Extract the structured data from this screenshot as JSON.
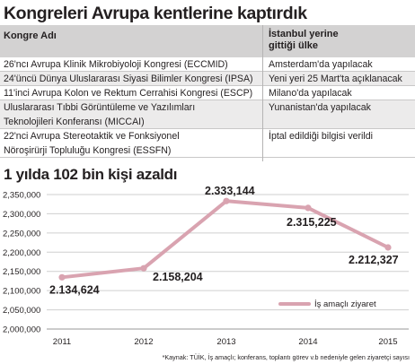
{
  "title": "Kongreleri Avrupa kentlerine kaptırdık",
  "table": {
    "col1_header": "Kongre Adı",
    "col2_header_line1": "İstanbul yerine",
    "col2_header_line2": "gittiği ülke",
    "rows": [
      {
        "name_lines": [
          "26'ncı Avrupa Klinik Mikrobiyoloji Kongresi (ECCMID)"
        ],
        "dest": "Amsterdam'da yapılacak"
      },
      {
        "name_lines": [
          "24'üncü Dünya Uluslararası Siyasi Bilimler Kongresi (IPSA)"
        ],
        "dest": "Yeni yeri 25 Mart'ta açıklanacak"
      },
      {
        "name_lines": [
          "11'inci Avrupa Kolon ve Rektum Cerrahisi Kongresi (ESCP)"
        ],
        "dest": "Milano'da yapılacak"
      },
      {
        "name_lines": [
          "Uluslararası Tıbbi Görüntüleme ve Yazılımları",
          "Teknolojileri Konferansı (MICCAI)"
        ],
        "dest": "Yunanistan'da yapılacak"
      },
      {
        "name_lines": [
          "22'nci Avrupa Stereotaktik ve Fonksiyonel",
          "Nöroşirürji Topluluğu Kongresi (ESSFN)"
        ],
        "dest": "İptal edildiği bilgisi verildi"
      }
    ]
  },
  "chart_title": "1 yılda 102 bin kişi azaldı",
  "footnote": "*Kaynak: TÜİK, İş amaçlı; konferans, toplantı görev v.b nedeniyle gelen ziyaretçi sayısı",
  "colors": {
    "line": "#d9a3b0",
    "grid": "#cfcfcf",
    "header_bg": "#d3d2d2",
    "row_shade": "#ecebeb"
  },
  "chart_data": {
    "type": "line",
    "x": [
      "2011",
      "2012",
      "2013",
      "2014",
      "2015"
    ],
    "series": [
      {
        "name": "İş amaçlı ziyaret",
        "values": [
          2134624,
          2158204,
          2333144,
          2315225,
          2212327
        ]
      }
    ],
    "data_labels": [
      "2.134,624",
      "2.158,204",
      "2.333,144",
      "2.315,225",
      "2.212,327"
    ],
    "ylim": [
      2000000,
      2350000
    ],
    "yticks": [
      2000000,
      2050000,
      2100000,
      2150000,
      2200000,
      2250000,
      2300000,
      2350000
    ],
    "ytick_labels": [
      "2,000,000",
      "2,050,000",
      "2,100,000",
      "2,150,000",
      "2,200,000",
      "2,250,000",
      "2,300,000",
      "2,350,000"
    ],
    "grid": true,
    "legend": "bottom-right"
  }
}
